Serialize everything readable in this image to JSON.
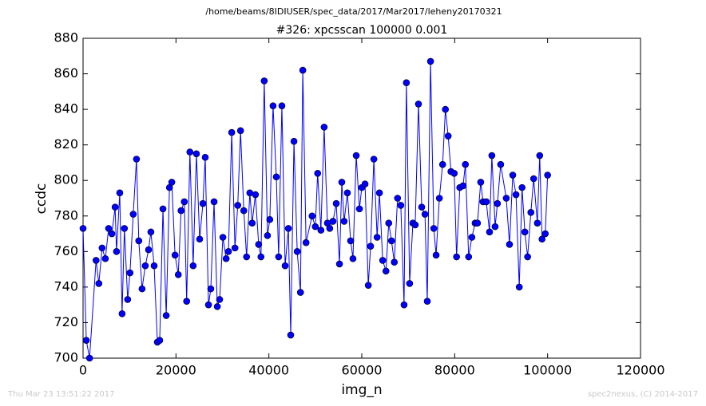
{
  "chart_data": {
    "type": "line",
    "suptitle": "/home/beams/8IDIUSER/spec_data/2017/Mar2017/leheny20170321",
    "title": "#326: xpcsscan 100000 0.001",
    "xlabel": "img_n",
    "ylabel": "ccdc",
    "footer_left": "Thu Mar 23 13:51:22 2017",
    "footer_right": "spec2nexus, (C) 2014-2017",
    "color": "#0000ff",
    "x": [
      0,
      700,
      1400,
      2800,
      3400,
      4100,
      4800,
      5500,
      6200,
      6900,
      7200,
      7900,
      8400,
      8900,
      9600,
      10100,
      10800,
      11500,
      12000,
      12700,
      13400,
      14100,
      14600,
      15300,
      16000,
      16500,
      17200,
      17900,
      18600,
      19100,
      19800,
      20500,
      21100,
      21800,
      22300,
      23000,
      23700,
      24400,
      25100,
      25800,
      26300,
      27000,
      27500,
      28200,
      28900,
      29400,
      30100,
      30800,
      31300,
      32000,
      32700,
      33300,
      33900,
      34600,
      35200,
      35900,
      36400,
      37100,
      37800,
      38300,
      39000,
      39700,
      40200,
      40900,
      41600,
      42100,
      42800,
      43500,
      44200,
      44700,
      45400,
      46100,
      46800,
      47300,
      48000,
      49300,
      50000,
      50500,
      51200,
      51900,
      52600,
      53100,
      53800,
      54500,
      55200,
      55700,
      56200,
      56900,
      57600,
      58100,
      58800,
      59500,
      60000,
      60700,
      61400,
      61900,
      62600,
      63300,
      63800,
      64500,
      65200,
      65800,
      66400,
      67000,
      67700,
      68400,
      69100,
      69600,
      70300,
      71000,
      71500,
      72200,
      72900,
      73600,
      74100,
      74800,
      75500,
      76000,
      76700,
      77400,
      78000,
      78600,
      79200,
      79900,
      80400,
      81100,
      81800,
      82300,
      83000,
      83700,
      84400,
      84900,
      85600,
      86100,
      86800,
      87500,
      88000,
      88700,
      89200,
      89900,
      91100,
      91800,
      92500,
      93200,
      93900,
      94500,
      95100,
      95700,
      96400,
      97000,
      97800,
      98300,
      98800,
      99500,
      100000
    ],
    "values": [
      773,
      710,
      700,
      755,
      742,
      762,
      756,
      773,
      770,
      785,
      760,
      793,
      725,
      773,
      733,
      748,
      781,
      812,
      766,
      739,
      752,
      761,
      771,
      752,
      709,
      710,
      784,
      724,
      796,
      799,
      758,
      747,
      783,
      788,
      732,
      816,
      752,
      815,
      767,
      787,
      813,
      730,
      739,
      788,
      729,
      733,
      768,
      756,
      760,
      827,
      762,
      786,
      828,
      783,
      757,
      793,
      776,
      792,
      764,
      757,
      856,
      769,
      778,
      842,
      802,
      757,
      842,
      752,
      773,
      713,
      822,
      760,
      737,
      862,
      765,
      780,
      774,
      804,
      772,
      830,
      776,
      773,
      777,
      787,
      753,
      799,
      777,
      793,
      766,
      756,
      814,
      784,
      796,
      798,
      741,
      763,
      812,
      768,
      793,
      755,
      749,
      776,
      766,
      754,
      790,
      786,
      730,
      855,
      742,
      776,
      775,
      843,
      785,
      781,
      732,
      867,
      773,
      758,
      790,
      809,
      840,
      825,
      805,
      804,
      757,
      796,
      797,
      809,
      757,
      768,
      776,
      776,
      799,
      788,
      788,
      771,
      814,
      774,
      787,
      809,
      790,
      764,
      803,
      792,
      740,
      796,
      771,
      757,
      782,
      801,
      776,
      814,
      767,
      770,
      803
    ],
    "xlim": [
      0,
      120000
    ],
    "xticks": [
      0,
      20000,
      40000,
      60000,
      80000,
      100000,
      120000
    ],
    "ylim": [
      700,
      880
    ],
    "yticks": [
      700,
      720,
      740,
      760,
      780,
      800,
      820,
      840,
      860,
      880
    ]
  }
}
